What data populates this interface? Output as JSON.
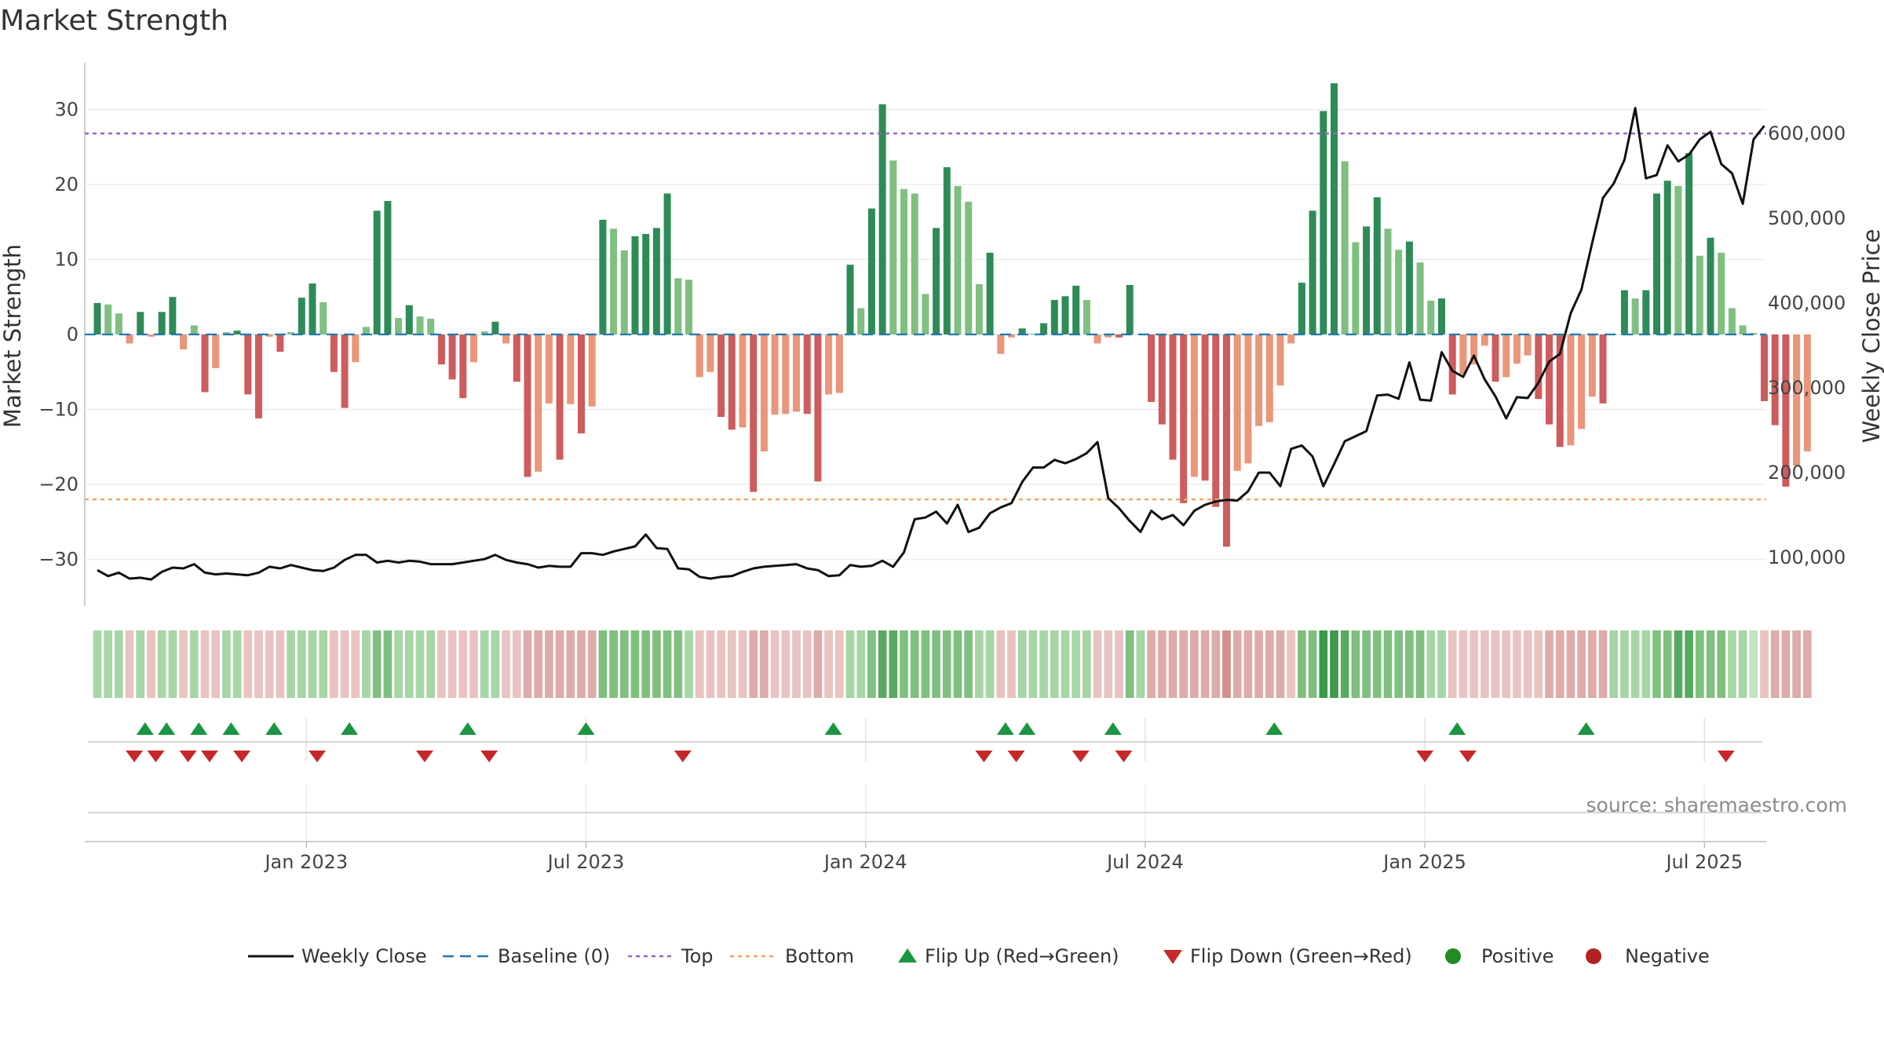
{
  "chart_data": {
    "type": "bar",
    "title": "Market Strength",
    "ylabel": "Market Strength",
    "y2label": "Weekly Close Price",
    "ylim": [
      -36,
      36
    ],
    "y2lim": [
      0,
      700000
    ],
    "y_ticks": [
      30,
      20,
      10,
      0,
      -10,
      -20,
      -30
    ],
    "y_tick_labels": [
      "30",
      "20",
      "10",
      "0",
      "−10",
      "−20",
      "−30"
    ],
    "y2_ticks": [
      600000,
      500000,
      400000,
      300000,
      200000,
      100000
    ],
    "y2_tick_labels": [
      "600,000",
      "500,000",
      "400,000",
      "300,000",
      "200,000",
      "100,000"
    ],
    "x_ticks": [
      {
        "label": "Jan 2023",
        "index": 19
      },
      {
        "label": "Jul 2023",
        "index": 45
      },
      {
        "label": "Jan 2024",
        "index": 71
      },
      {
        "label": "Jul 2024",
        "index": 97
      },
      {
        "label": "Jan 2025",
        "index": 123
      },
      {
        "label": "Jul 2025",
        "index": 149
      }
    ],
    "top_level": 26.8,
    "bottom_level": -22,
    "grid": true,
    "legend_placement": "bottom-center",
    "colors": {
      "pos_strong": "#2e8b57",
      "pos_light": "#7fbf7f",
      "neg_strong": "#cd5c5c",
      "neg_light": "#e9967a",
      "line": "#111111",
      "baseline": "#1f77b4",
      "top": "#9467bd",
      "bottom": "#f4a460",
      "flip_up": "#1a9641",
      "flip_down": "#c62828",
      "positive": "#228b22",
      "negative": "#b22222"
    },
    "series": [
      {
        "name": "Market Strength",
        "values": [
          4.2,
          4,
          2.8,
          -1.2,
          3,
          -0.3,
          3,
          5,
          -2,
          1.2,
          -7.7,
          -4.5,
          0.3,
          0.5,
          -8,
          -11.2,
          -0.3,
          -2.3,
          0.3,
          4.9,
          6.8,
          4.3,
          -5,
          -9.8,
          -3.7,
          1,
          16.5,
          17.8,
          2.2,
          3.9,
          2.4,
          2.1,
          -4,
          -6,
          -8.5,
          -3.7,
          0.4,
          1.7,
          -1.2,
          -6.3,
          -19,
          -18.3,
          -9.2,
          -16.7,
          -9.3,
          -13.2,
          -9.6,
          15.3,
          14.1,
          11.2,
          13.1,
          13.4,
          14.2,
          18.8,
          7.5,
          7.3,
          -5.7,
          -5,
          -11,
          -12.7,
          -12.4,
          -21,
          -15.6,
          -10.7,
          -10.6,
          -10.3,
          -10.6,
          -19.6,
          -8,
          -7.8,
          9.3,
          3.5,
          16.8,
          30.7,
          23.2,
          19.4,
          18.8,
          5.4,
          14.2,
          22.3,
          19.8,
          17.7,
          6.7,
          10.9,
          -2.6,
          -0.4,
          0.8,
          0.1,
          1.5,
          4.6,
          5.1,
          6.5,
          4.6,
          -1.2,
          -0.4,
          -0.4,
          6.6,
          0,
          -9,
          -12,
          -16.7,
          -22.5,
          -19,
          -19.5,
          -23,
          -28.3,
          -18.2,
          -17.2,
          -12.2,
          -11.7,
          -6.8,
          -1.2,
          6.9,
          16.5,
          29.8,
          33.5,
          23.1,
          12.3,
          14.4,
          18.3,
          14.1,
          11.3,
          12.4,
          9.6,
          4.5,
          4.8,
          -8,
          -5.3,
          -4,
          -1.5,
          -6.3,
          -5.7,
          -3.9,
          -2.8,
          -8.6,
          -12,
          -15,
          -14.8,
          -12.6,
          -8.3,
          -9.2,
          0,
          5.9,
          4.8,
          5.9,
          18.8,
          20.5,
          19.8,
          24.2,
          10.5,
          12.9,
          10.9,
          3.5,
          1.2,
          0.2,
          -8.9,
          -12.1,
          -20.3,
          -17.5,
          -15.6
        ]
      },
      {
        "name": "Weekly Close",
        "values": [
          85000,
          78000,
          82000,
          75000,
          76000,
          74000,
          83000,
          88000,
          87000,
          92000,
          82000,
          80000,
          81000,
          80000,
          79000,
          82000,
          89000,
          87000,
          91000,
          88000,
          85000,
          84000,
          88000,
          97000,
          103000,
          103000,
          94000,
          96000,
          94000,
          96000,
          95000,
          92000,
          92000,
          92000,
          94000,
          96000,
          98000,
          103000,
          97000,
          94000,
          92000,
          88000,
          90000,
          89000,
          89000,
          105000,
          105000,
          103000,
          107000,
          110000,
          113000,
          127000,
          111000,
          110000,
          87000,
          86000,
          77000,
          75000,
          77000,
          78000,
          83000,
          87000,
          89000,
          90000,
          91000,
          92000,
          87000,
          85000,
          78000,
          79000,
          91000,
          89000,
          90000,
          96000,
          89000,
          106000,
          145000,
          147000,
          154000,
          140000,
          162000,
          130000,
          135000,
          152000,
          159000,
          164000,
          189000,
          206000,
          206000,
          215000,
          211000,
          216000,
          223000,
          236000,
          170000,
          158000,
          143000,
          130000,
          155000,
          145000,
          150000,
          138000,
          155000,
          162000,
          166000,
          168000,
          167000,
          178000,
          200000,
          200000,
          184000,
          228000,
          232000,
          219000,
          184000,
          210000,
          237000,
          243000,
          249000,
          291000,
          292000,
          287000,
          330000,
          286000,
          285000,
          342000,
          320000,
          313000,
          338000,
          310000,
          290000,
          264000,
          289000,
          288000,
          306000,
          331000,
          340000,
          388000,
          416000,
          471000,
          524000,
          541000,
          569000,
          630000,
          547000,
          551000,
          586000,
          567000,
          575000,
          593000,
          602000,
          564000,
          553000,
          517000,
          593000,
          609000
        ]
      }
    ],
    "heat_strip": {
      "levels": [
        2,
        2,
        2,
        1,
        2,
        1,
        2,
        2,
        1,
        2,
        1,
        1,
        2,
        2,
        1,
        1,
        1,
        1,
        2,
        2,
        2,
        2,
        1,
        1,
        1,
        2,
        3,
        3,
        2,
        2,
        2,
        2,
        1,
        1,
        1,
        1,
        2,
        2,
        1,
        1,
        2,
        2,
        2,
        2,
        2,
        2,
        2,
        3,
        3,
        3,
        3,
        3,
        3,
        3,
        3,
        2,
        1,
        1,
        1,
        1,
        1,
        2,
        2,
        1,
        1,
        1,
        1,
        2,
        1,
        1,
        2,
        2,
        3,
        4,
        4,
        3,
        3,
        3,
        3,
        3,
        3,
        3,
        2,
        2,
        1,
        1,
        2,
        2,
        2,
        2,
        2,
        2,
        2,
        1,
        1,
        1,
        3,
        2,
        2,
        2,
        2,
        2,
        2,
        2,
        2,
        3,
        2,
        2,
        2,
        2,
        2,
        1,
        3,
        3,
        5,
        5,
        4,
        3,
        3,
        3,
        3,
        3,
        3,
        3,
        2,
        2,
        1,
        1,
        1,
        1,
        1,
        1,
        1,
        1,
        1,
        2,
        2,
        2,
        2,
        2,
        2,
        2,
        2,
        2,
        2,
        3,
        3,
        4,
        4,
        3,
        3,
        3,
        2,
        2,
        1,
        1,
        2,
        2,
        2,
        2
      ]
    },
    "flip_up_indices": [
      4,
      6,
      9,
      12,
      16,
      23,
      34,
      45,
      68,
      84,
      86,
      94,
      109,
      126,
      138
    ],
    "flip_down_indices": [
      3,
      5,
      8,
      10,
      13,
      20,
      30,
      36,
      54,
      82,
      85,
      91,
      95,
      123,
      127,
      151
    ],
    "legend": [
      {
        "type": "line",
        "label": "Weekly Close"
      },
      {
        "type": "baseline",
        "label": "Baseline (0)"
      },
      {
        "type": "top",
        "label": "Top"
      },
      {
        "type": "bottom",
        "label": "Bottom"
      },
      {
        "type": "flip-up",
        "label": "Flip Up (Red→Green)"
      },
      {
        "type": "flip-down",
        "label": "Flip Down (Green→Red)"
      },
      {
        "type": "positive",
        "label": "Positive"
      },
      {
        "type": "negative",
        "label": "Negative"
      }
    ],
    "source": "source: sharemaestro.com"
  }
}
